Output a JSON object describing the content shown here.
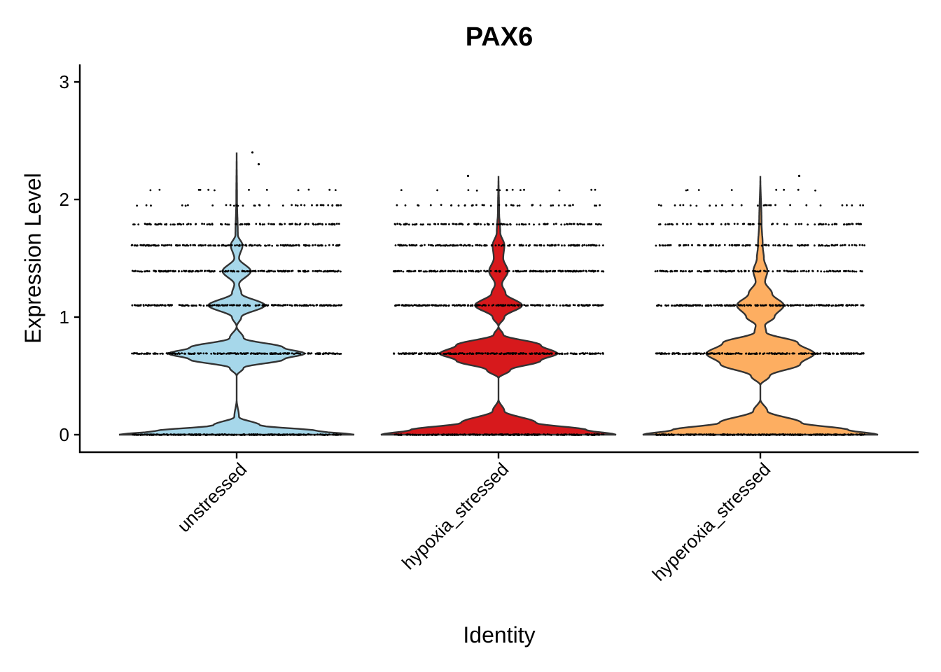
{
  "chart_data": {
    "type": "violin",
    "title": "PAX6",
    "xlabel": "Identity",
    "ylabel": "Expression Level",
    "ylim": [
      -0.14,
      3.15
    ],
    "yticks": [
      0,
      1,
      2,
      3
    ],
    "grid": false,
    "legend": "none",
    "categories": [
      "unstressed",
      "hypoxia_stressed",
      "hyperoxia_stressed"
    ],
    "colors": [
      "#A6D7EA",
      "#D7191C",
      "#FDAE61"
    ],
    "jitter_levels": [
      0,
      0.69,
      1.1,
      1.39,
      1.61,
      1.79,
      1.95,
      2.08
    ],
    "series": [
      {
        "name": "unstressed",
        "max": 2.4,
        "density": [
          [
            0,
            1.0
          ],
          [
            0.03,
            0.7
          ],
          [
            0.08,
            0.2
          ],
          [
            0.15,
            0.02
          ],
          [
            0.3,
            0.0
          ],
          [
            0.5,
            0.0
          ],
          [
            0.57,
            0.06
          ],
          [
            0.64,
            0.4
          ],
          [
            0.69,
            0.58
          ],
          [
            0.74,
            0.4
          ],
          [
            0.82,
            0.06
          ],
          [
            0.92,
            0.0
          ],
          [
            1.0,
            0.04
          ],
          [
            1.1,
            0.24
          ],
          [
            1.2,
            0.04
          ],
          [
            1.28,
            0.02
          ],
          [
            1.39,
            0.12
          ],
          [
            1.5,
            0.02
          ],
          [
            1.61,
            0.05
          ],
          [
            1.7,
            0.01
          ],
          [
            2.0,
            0.003
          ],
          [
            2.4,
            0.0
          ]
        ],
        "outliers": [
          [
            0.15,
            2.4
          ],
          [
            0.21,
            2.3
          ]
        ]
      },
      {
        "name": "hypoxia_stressed",
        "max": 2.2,
        "density": [
          [
            0,
            1.0
          ],
          [
            0.04,
            0.75
          ],
          [
            0.1,
            0.32
          ],
          [
            0.2,
            0.05
          ],
          [
            0.3,
            0.0
          ],
          [
            0.48,
            0.0
          ],
          [
            0.55,
            0.1
          ],
          [
            0.63,
            0.36
          ],
          [
            0.69,
            0.5
          ],
          [
            0.76,
            0.36
          ],
          [
            0.85,
            0.04
          ],
          [
            0.92,
            0.0
          ],
          [
            1.0,
            0.05
          ],
          [
            1.1,
            0.2
          ],
          [
            1.2,
            0.06
          ],
          [
            1.28,
            0.03
          ],
          [
            1.39,
            0.08
          ],
          [
            1.5,
            0.04
          ],
          [
            1.61,
            0.05
          ],
          [
            1.72,
            0.015
          ],
          [
            1.9,
            0.005
          ],
          [
            2.2,
            0.0
          ]
        ],
        "outliers": [
          [
            -0.29,
            2.2
          ],
          [
            0.08,
            2.08
          ]
        ]
      },
      {
        "name": "hyperoxia_stressed",
        "max": 2.2,
        "density": [
          [
            0,
            1.0
          ],
          [
            0.04,
            0.75
          ],
          [
            0.1,
            0.35
          ],
          [
            0.2,
            0.06
          ],
          [
            0.3,
            0.0
          ],
          [
            0.42,
            0.0
          ],
          [
            0.5,
            0.08
          ],
          [
            0.6,
            0.34
          ],
          [
            0.69,
            0.46
          ],
          [
            0.78,
            0.32
          ],
          [
            0.87,
            0.05
          ],
          [
            0.93,
            0.04
          ],
          [
            1.0,
            0.12
          ],
          [
            1.1,
            0.2
          ],
          [
            1.2,
            0.1
          ],
          [
            1.3,
            0.04
          ],
          [
            1.39,
            0.06
          ],
          [
            1.5,
            0.03
          ],
          [
            1.61,
            0.02
          ],
          [
            1.8,
            0.01
          ],
          [
            2.2,
            0.0
          ]
        ],
        "outliers": [
          [
            0.37,
            2.2
          ]
        ]
      }
    ]
  }
}
